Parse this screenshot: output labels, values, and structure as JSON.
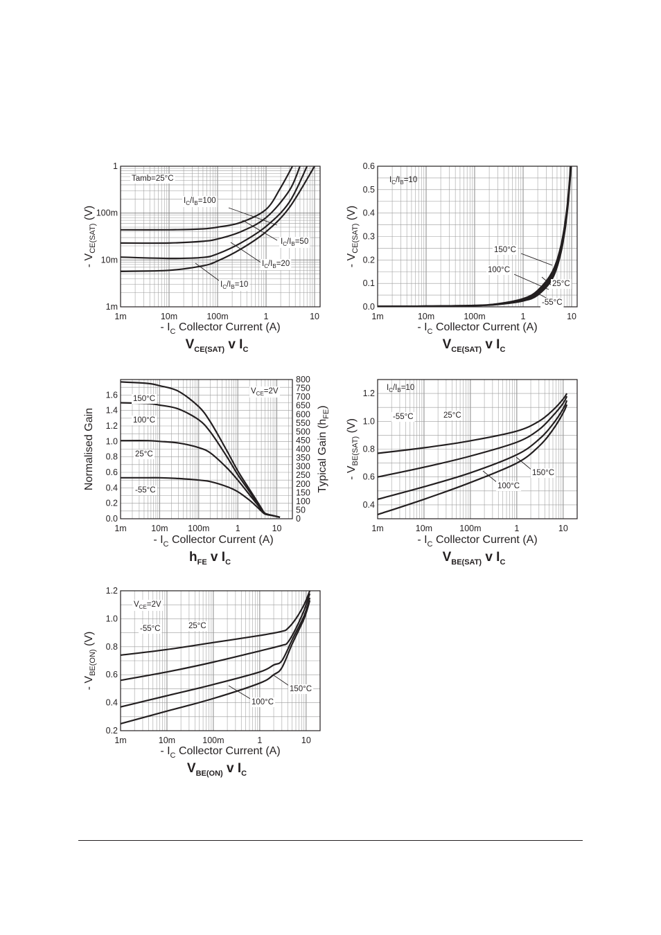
{
  "chart_data": [
    {
      "type": "line",
      "x_scale": "log",
      "y_scale": "log",
      "xlim": [
        0.001,
        13
      ],
      "ylim": [
        0.001,
        1
      ],
      "x_ticks": [
        "1m",
        "10m",
        "100m",
        "1",
        "10"
      ],
      "y_ticks": [
        "1m",
        "10m",
        "100m",
        "1"
      ],
      "ylabel": {
        "main": "- V",
        "sub": "CE(SAT)",
        "unit": "(V)"
      },
      "xlabel": {
        "prefix": "- I",
        "sub": "C",
        "main": "Collector Current (A)"
      },
      "title": {
        "main": "V",
        "sub": "CE(SAT)",
        "tail": " v I",
        "tail_sub": "C"
      },
      "annotations": [
        {
          "text": "Tamb=25°C"
        },
        {
          "text": "I",
          "sub": "C",
          "mid": "/I",
          "sub2": "B",
          "tail": "=100"
        },
        {
          "text": "I",
          "sub": "C",
          "mid": "/I",
          "sub2": "B",
          "tail": "=50"
        },
        {
          "text": "I",
          "sub": "C",
          "mid": "/I",
          "sub2": "B",
          "tail": "=20"
        },
        {
          "text": "I",
          "sub": "C",
          "mid": "/I",
          "sub2": "B",
          "tail": "=10"
        }
      ],
      "series": [
        {
          "name": "IC/IB=100",
          "x": [
            0.001,
            0.01,
            0.05,
            0.1,
            0.3,
            1,
            2,
            3.5
          ],
          "y": [
            0.044,
            0.044,
            0.046,
            0.05,
            0.063,
            0.12,
            0.35,
            1.0
          ]
        },
        {
          "name": "IC/IB=50",
          "x": [
            0.001,
            0.01,
            0.05,
            0.1,
            0.3,
            1,
            3,
            5
          ],
          "y": [
            0.023,
            0.023,
            0.025,
            0.028,
            0.04,
            0.08,
            0.3,
            1.0
          ]
        },
        {
          "name": "IC/IB=20",
          "x": [
            0.001,
            0.01,
            0.05,
            0.1,
            0.3,
            1,
            3,
            7
          ],
          "y": [
            0.0115,
            0.0108,
            0.0113,
            0.0135,
            0.023,
            0.052,
            0.17,
            1.0
          ]
        },
        {
          "name": "IC/IB=10",
          "x": [
            0.001,
            0.01,
            0.05,
            0.1,
            0.3,
            1,
            3,
            10
          ],
          "y": [
            0.0057,
            0.006,
            0.0075,
            0.0095,
            0.017,
            0.04,
            0.13,
            1.0
          ]
        }
      ]
    },
    {
      "type": "line",
      "x_scale": "log",
      "y_scale": "linear",
      "xlim": [
        0.001,
        13
      ],
      "ylim": [
        0,
        0.6
      ],
      "x_ticks": [
        "1m",
        "10m",
        "100m",
        "1",
        "10"
      ],
      "y_ticks": [
        "0.0",
        "0.1",
        "0.2",
        "0.3",
        "0.4",
        "0.5",
        "0.6"
      ],
      "ylabel": {
        "main": "- V",
        "sub": "CE(SAT)",
        "unit": "(V)"
      },
      "xlabel": {
        "prefix": "- I",
        "sub": "C",
        "main": "Collector Current (A)"
      },
      "title": {
        "main": "V",
        "sub": "CE(SAT)",
        "tail": " v I",
        "tail_sub": "C"
      },
      "annotations": [
        {
          "text": "I",
          "sub": "C",
          "mid": "/I",
          "sub2": "B",
          "tail": "=10"
        },
        {
          "text": "150°C"
        },
        {
          "text": "100°C"
        },
        {
          "text": "25°C"
        },
        {
          "text": "-55°C"
        }
      ],
      "series": [
        {
          "name": "150°C",
          "x": [
            0.001,
            0.01,
            0.1,
            0.3,
            1,
            2,
            4,
            6,
            8,
            9.5
          ],
          "y": [
            0.002,
            0.003,
            0.006,
            0.013,
            0.035,
            0.07,
            0.15,
            0.26,
            0.42,
            0.6
          ]
        },
        {
          "name": "100°C",
          "x": [
            0.001,
            0.01,
            0.1,
            0.3,
            1,
            2,
            4,
            6,
            8,
            9.6
          ],
          "y": [
            0.002,
            0.003,
            0.006,
            0.012,
            0.032,
            0.064,
            0.14,
            0.25,
            0.41,
            0.6
          ]
        },
        {
          "name": "25°C",
          "x": [
            0.001,
            0.01,
            0.1,
            0.3,
            1,
            2,
            4,
            6,
            8,
            9.7
          ],
          "y": [
            0.002,
            0.003,
            0.005,
            0.011,
            0.028,
            0.057,
            0.13,
            0.24,
            0.4,
            0.6
          ]
        },
        {
          "name": "-55°C",
          "x": [
            0.001,
            0.01,
            0.1,
            0.3,
            1,
            2,
            4,
            6,
            8,
            9.8
          ],
          "y": [
            0.002,
            0.003,
            0.005,
            0.01,
            0.025,
            0.05,
            0.12,
            0.23,
            0.39,
            0.6
          ]
        }
      ]
    },
    {
      "type": "line",
      "x_scale": "log",
      "y_scale": "linear",
      "xlim": [
        0.001,
        25
      ],
      "ylim": [
        0,
        1.8
      ],
      "y2lim": [
        0,
        800
      ],
      "x_ticks": [
        "1m",
        "10m",
        "100m",
        "1",
        "10"
      ],
      "y_ticks": [
        "0.0",
        "0.2",
        "0.4",
        "0.6",
        "0.8",
        "1.0",
        "1.2",
        "1.4",
        "1.6"
      ],
      "y2_ticks": [
        "0",
        "50",
        "100",
        "150",
        "200",
        "250",
        "300",
        "350",
        "400",
        "450",
        "500",
        "550",
        "600",
        "650",
        "700",
        "750",
        "800"
      ],
      "ylabel": {
        "main": "Normalised Gain"
      },
      "y2label": {
        "main": "Typical Gain (h",
        "sub": "FE",
        "tail": ")"
      },
      "xlabel": {
        "prefix": "- I",
        "sub": "C",
        "main": "Collector Current (A)"
      },
      "title": {
        "main": "h",
        "sub": "FE",
        "tail": " v I",
        "tail_sub": "C"
      },
      "annotations": [
        {
          "text": "V",
          "sub": "CE",
          "tail": "=2V"
        },
        {
          "text": "150°C"
        },
        {
          "text": "100°C"
        },
        {
          "text": "25°C"
        },
        {
          "text": "-55°C"
        }
      ],
      "series": [
        {
          "name": "150°C",
          "x": [
            0.001,
            0.005,
            0.01,
            0.03,
            0.1,
            0.2,
            0.5,
            1,
            2,
            3,
            4,
            5,
            8,
            12
          ],
          "y": [
            1.77,
            1.75,
            1.72,
            1.65,
            1.45,
            1.25,
            0.9,
            0.62,
            0.38,
            0.24,
            0.14,
            0.07,
            0.04,
            0.02
          ]
        },
        {
          "name": "100°C",
          "x": [
            0.001,
            0.005,
            0.01,
            0.03,
            0.1,
            0.2,
            0.5,
            1,
            2,
            3,
            4,
            5,
            8,
            12
          ],
          "y": [
            1.5,
            1.49,
            1.47,
            1.42,
            1.28,
            1.12,
            0.82,
            0.57,
            0.35,
            0.22,
            0.13,
            0.07,
            0.04,
            0.02
          ]
        },
        {
          "name": "25°C",
          "x": [
            0.001,
            0.005,
            0.01,
            0.03,
            0.1,
            0.2,
            0.5,
            1,
            2,
            3,
            4,
            5,
            8,
            12
          ],
          "y": [
            1.01,
            1.01,
            1.0,
            0.98,
            0.92,
            0.85,
            0.67,
            0.5,
            0.31,
            0.2,
            0.12,
            0.07,
            0.04,
            0.02
          ]
        },
        {
          "name": "-55°C",
          "x": [
            0.001,
            0.005,
            0.01,
            0.03,
            0.1,
            0.2,
            0.5,
            1,
            2,
            3,
            4,
            5,
            8,
            12
          ],
          "y": [
            0.53,
            0.53,
            0.53,
            0.52,
            0.5,
            0.48,
            0.42,
            0.35,
            0.24,
            0.16,
            0.1,
            0.06,
            0.04,
            0.02
          ]
        }
      ]
    },
    {
      "type": "line",
      "x_scale": "log",
      "y_scale": "linear",
      "xlim": [
        0.001,
        20
      ],
      "ylim": [
        0.3,
        1.3
      ],
      "x_ticks": [
        "1m",
        "10m",
        "100m",
        "1",
        "10"
      ],
      "y_ticks": [
        "0.4",
        "0.6",
        "0.8",
        "1.0",
        "1.2"
      ],
      "ylabel": {
        "main": "- V",
        "sub": "BE(SAT)",
        "unit": "(V)"
      },
      "xlabel": {
        "prefix": "- I",
        "sub": "C",
        "main": "Collector Current (A)"
      },
      "title": {
        "main": "V",
        "sub": "BE(SAT)",
        "tail": " v I",
        "tail_sub": "C"
      },
      "annotations": [
        {
          "text": "I",
          "sub": "C",
          "mid": "/I",
          "sub2": "B",
          "tail": "=10"
        },
        {
          "text": "-55°C"
        },
        {
          "text": "25°C"
        },
        {
          "text": "150°C"
        },
        {
          "text": "100°C"
        }
      ],
      "series": [
        {
          "name": "-55°C",
          "x": [
            0.001,
            0.01,
            0.1,
            1,
            3,
            6,
            10,
            12
          ],
          "y": [
            0.77,
            0.81,
            0.86,
            0.93,
            1.0,
            1.08,
            1.16,
            1.2
          ]
        },
        {
          "name": "25°C",
          "x": [
            0.001,
            0.01,
            0.1,
            1,
            3,
            6,
            10,
            12
          ],
          "y": [
            0.6,
            0.67,
            0.75,
            0.85,
            0.94,
            1.04,
            1.13,
            1.18
          ]
        },
        {
          "name": "100°C",
          "x": [
            0.001,
            0.01,
            0.1,
            1,
            3,
            6,
            10,
            12
          ],
          "y": [
            0.44,
            0.53,
            0.63,
            0.76,
            0.87,
            0.98,
            1.09,
            1.15
          ]
        },
        {
          "name": "150°C",
          "x": [
            0.001,
            0.01,
            0.1,
            1,
            3,
            6,
            10,
            12
          ],
          "y": [
            0.33,
            0.44,
            0.56,
            0.7,
            0.82,
            0.94,
            1.06,
            1.12
          ]
        }
      ]
    },
    {
      "type": "line",
      "x_scale": "log",
      "y_scale": "linear",
      "xlim": [
        0.001,
        20
      ],
      "ylim": [
        0.2,
        1.2
      ],
      "x_ticks": [
        "1m",
        "10m",
        "100m",
        "1",
        "10"
      ],
      "y_ticks": [
        "0.2",
        "0.4",
        "0.6",
        "0.8",
        "1.0",
        "1.2"
      ],
      "ylabel": {
        "main": "- V",
        "sub": "BE(ON)",
        "unit": "(V)"
      },
      "xlabel": {
        "prefix": "- I",
        "sub": "C",
        "main": "Collector Current (A)"
      },
      "title": {
        "main": "V",
        "sub": "BE(ON)",
        "tail": " v I",
        "tail_sub": "C"
      },
      "annotations": [
        {
          "text": "V",
          "sub": "CE",
          "tail": "=2V"
        },
        {
          "text": "-55°C"
        },
        {
          "text": "25°C"
        },
        {
          "text": "150°C"
        },
        {
          "text": "100°C"
        }
      ],
      "series": [
        {
          "name": "-55°C",
          "x": [
            0.001,
            0.01,
            0.1,
            1,
            3,
            4,
            6,
            9,
            12
          ],
          "y": [
            0.74,
            0.78,
            0.83,
            0.88,
            0.91,
            0.93,
            1.0,
            1.1,
            1.2
          ]
        },
        {
          "name": "25°C",
          "x": [
            0.001,
            0.01,
            0.1,
            1,
            3,
            4,
            6,
            9,
            12
          ],
          "y": [
            0.56,
            0.62,
            0.69,
            0.77,
            0.81,
            0.83,
            0.93,
            1.06,
            1.18
          ]
        },
        {
          "name": "100°C",
          "x": [
            0.001,
            0.01,
            0.1,
            1,
            2,
            3,
            5,
            9,
            12
          ],
          "y": [
            0.37,
            0.45,
            0.53,
            0.62,
            0.67,
            0.7,
            0.85,
            1.02,
            1.15
          ]
        },
        {
          "name": "150°C",
          "x": [
            0.001,
            0.01,
            0.1,
            1,
            2,
            3,
            5,
            9,
            12
          ],
          "y": [
            0.25,
            0.34,
            0.43,
            0.54,
            0.6,
            0.65,
            0.82,
            1.0,
            1.13
          ]
        }
      ]
    }
  ]
}
